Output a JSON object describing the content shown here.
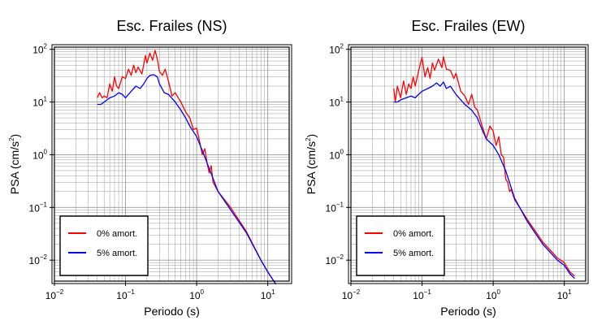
{
  "chart_data": [
    {
      "type": "line",
      "title": "Esc. Frailes (NS)",
      "xlabel": "Periodo (s)",
      "ylabel_base": "PSA (cm/s",
      "ylabel_sup": "2",
      "ylabel_end": ")",
      "x_scale": "log",
      "y_scale": "log",
      "xlim": [
        0.01,
        20
      ],
      "ylim": [
        0.004,
        110
      ],
      "grid": true,
      "legend_position": "bottom-left",
      "x_ticks": [
        {
          "base": "10",
          "exp": "−2"
        },
        {
          "base": "10",
          "exp": "−1"
        },
        {
          "base": "10",
          "exp": "0"
        },
        {
          "base": "10",
          "exp": "1"
        }
      ],
      "y_ticks": [
        {
          "base": "10",
          "exp": "−2"
        },
        {
          "base": "10",
          "exp": "−1"
        },
        {
          "base": "10",
          "exp": "0"
        },
        {
          "base": "10",
          "exp": "1"
        },
        {
          "base": "10",
          "exp": "2"
        }
      ],
      "series": [
        {
          "name": "0% amort.",
          "color": "#ff0000",
          "points": [
            [
              0.04,
              12
            ],
            [
              0.043,
              15
            ],
            [
              0.047,
              12
            ],
            [
              0.05,
              13
            ],
            [
              0.055,
              12
            ],
            [
              0.06,
              22
            ],
            [
              0.065,
              16
            ],
            [
              0.07,
              30
            ],
            [
              0.075,
              20
            ],
            [
              0.08,
              18
            ],
            [
              0.09,
              30
            ],
            [
              0.1,
              28
            ],
            [
              0.11,
              42
            ],
            [
              0.12,
              32
            ],
            [
              0.13,
              50
            ],
            [
              0.14,
              36
            ],
            [
              0.15,
              46
            ],
            [
              0.17,
              34
            ],
            [
              0.19,
              76
            ],
            [
              0.2,
              55
            ],
            [
              0.22,
              85
            ],
            [
              0.24,
              62
            ],
            [
              0.26,
              95
            ],
            [
              0.28,
              65
            ],
            [
              0.3,
              38
            ],
            [
              0.33,
              32
            ],
            [
              0.36,
              42
            ],
            [
              0.4,
              25
            ],
            [
              0.45,
              13
            ],
            [
              0.5,
              15
            ],
            [
              0.55,
              12
            ],
            [
              0.6,
              10
            ],
            [
              0.7,
              6.5
            ],
            [
              0.8,
              5
            ],
            [
              0.9,
              3
            ],
            [
              1.0,
              3.2
            ],
            [
              1.1,
              1.8
            ],
            [
              1.2,
              1.0
            ],
            [
              1.3,
              1.3
            ],
            [
              1.4,
              0.7
            ],
            [
              1.5,
              0.45
            ],
            [
              1.6,
              0.62
            ],
            [
              1.7,
              0.3
            ],
            [
              2,
              0.2
            ],
            [
              3,
              0.1
            ],
            [
              5,
              0.035
            ],
            [
              8,
              0.01
            ],
            [
              10,
              0.006
            ],
            [
              13,
              0.0035
            ]
          ]
        },
        {
          "name": "5% amort.",
          "color": "#0000ff",
          "points": [
            [
              0.04,
              9
            ],
            [
              0.045,
              9
            ],
            [
              0.05,
              10
            ],
            [
              0.06,
              12
            ],
            [
              0.07,
              13
            ],
            [
              0.08,
              15
            ],
            [
              0.09,
              14
            ],
            [
              0.1,
              12
            ],
            [
              0.12,
              16
            ],
            [
              0.14,
              20
            ],
            [
              0.16,
              18
            ],
            [
              0.18,
              22
            ],
            [
              0.2,
              28
            ],
            [
              0.22,
              32
            ],
            [
              0.25,
              33
            ],
            [
              0.28,
              30
            ],
            [
              0.3,
              22
            ],
            [
              0.35,
              15
            ],
            [
              0.4,
              14
            ],
            [
              0.5,
              10
            ],
            [
              0.6,
              7
            ],
            [
              0.7,
              5
            ],
            [
              0.8,
              3.5
            ],
            [
              1.0,
              2.2
            ],
            [
              1.2,
              1.2
            ],
            [
              1.5,
              0.55
            ],
            [
              2,
              0.2
            ],
            [
              3,
              0.09
            ],
            [
              5,
              0.033
            ],
            [
              8,
              0.01
            ],
            [
              10,
              0.006
            ],
            [
              13,
              0.0035
            ]
          ]
        }
      ]
    },
    {
      "type": "line",
      "title": "Esc. Frailes (EW)",
      "xlabel": "Periodo (s)",
      "ylabel_base": "PSA (cm/s",
      "ylabel_sup": "2",
      "ylabel_end": ")",
      "x_scale": "log",
      "y_scale": "log",
      "xlim": [
        0.01,
        20
      ],
      "ylim": [
        0.004,
        110
      ],
      "grid": true,
      "legend_position": "bottom-left",
      "x_ticks": [
        {
          "base": "10",
          "exp": "−2"
        },
        {
          "base": "10",
          "exp": "−1"
        },
        {
          "base": "10",
          "exp": "0"
        },
        {
          "base": "10",
          "exp": "1"
        }
      ],
      "y_ticks": [
        {
          "base": "10",
          "exp": "−2"
        },
        {
          "base": "10",
          "exp": "−1"
        },
        {
          "base": "10",
          "exp": "0"
        },
        {
          "base": "10",
          "exp": "1"
        },
        {
          "base": "10",
          "exp": "2"
        }
      ],
      "series": [
        {
          "name": "0% amort.",
          "color": "#ff0000",
          "points": [
            [
              0.04,
              18
            ],
            [
              0.042,
              10
            ],
            [
              0.045,
              20
            ],
            [
              0.05,
              12
            ],
            [
              0.055,
              25
            ],
            [
              0.06,
              14
            ],
            [
              0.065,
              22
            ],
            [
              0.07,
              18
            ],
            [
              0.075,
              30
            ],
            [
              0.08,
              20
            ],
            [
              0.09,
              40
            ],
            [
              0.1,
              70
            ],
            [
              0.11,
              30
            ],
            [
              0.12,
              45
            ],
            [
              0.13,
              28
            ],
            [
              0.14,
              55
            ],
            [
              0.15,
              40
            ],
            [
              0.17,
              65
            ],
            [
              0.19,
              45
            ],
            [
              0.2,
              72
            ],
            [
              0.22,
              42
            ],
            [
              0.25,
              40
            ],
            [
              0.28,
              28
            ],
            [
              0.3,
              35
            ],
            [
              0.35,
              16
            ],
            [
              0.4,
              13
            ],
            [
              0.45,
              9
            ],
            [
              0.5,
              14
            ],
            [
              0.55,
              8
            ],
            [
              0.6,
              7
            ],
            [
              0.7,
              3.5
            ],
            [
              0.8,
              2.0
            ],
            [
              0.9,
              3.5
            ],
            [
              1.0,
              2.8
            ],
            [
              1.1,
              1.5
            ],
            [
              1.2,
              2.2
            ],
            [
              1.3,
              1.0
            ],
            [
              1.4,
              0.9
            ],
            [
              1.5,
              0.35
            ],
            [
              1.6,
              0.3
            ],
            [
              1.7,
              0.2
            ],
            [
              1.8,
              0.22
            ],
            [
              2,
              0.14
            ],
            [
              3,
              0.06
            ],
            [
              5,
              0.022
            ],
            [
              8,
              0.011
            ],
            [
              10,
              0.009
            ],
            [
              12,
              0.006
            ],
            [
              14,
              0.005
            ]
          ]
        },
        {
          "name": "5% amort.",
          "color": "#0000ff",
          "points": [
            [
              0.04,
              10
            ],
            [
              0.045,
              10
            ],
            [
              0.05,
              11
            ],
            [
              0.06,
              12
            ],
            [
              0.07,
              13
            ],
            [
              0.08,
              12
            ],
            [
              0.09,
              14
            ],
            [
              0.1,
              16
            ],
            [
              0.12,
              18
            ],
            [
              0.14,
              20
            ],
            [
              0.16,
              23
            ],
            [
              0.18,
              20
            ],
            [
              0.2,
              24
            ],
            [
              0.22,
              18
            ],
            [
              0.25,
              20
            ],
            [
              0.3,
              14
            ],
            [
              0.35,
              11
            ],
            [
              0.4,
              9
            ],
            [
              0.5,
              7
            ],
            [
              0.6,
              5
            ],
            [
              0.7,
              3
            ],
            [
              0.8,
              2
            ],
            [
              1.0,
              1.5
            ],
            [
              1.2,
              1.0
            ],
            [
              1.5,
              0.5
            ],
            [
              2,
              0.15
            ],
            [
              3,
              0.055
            ],
            [
              5,
              0.02
            ],
            [
              8,
              0.01
            ],
            [
              10,
              0.008
            ],
            [
              12,
              0.0055
            ],
            [
              14,
              0.0045
            ]
          ]
        }
      ]
    }
  ]
}
